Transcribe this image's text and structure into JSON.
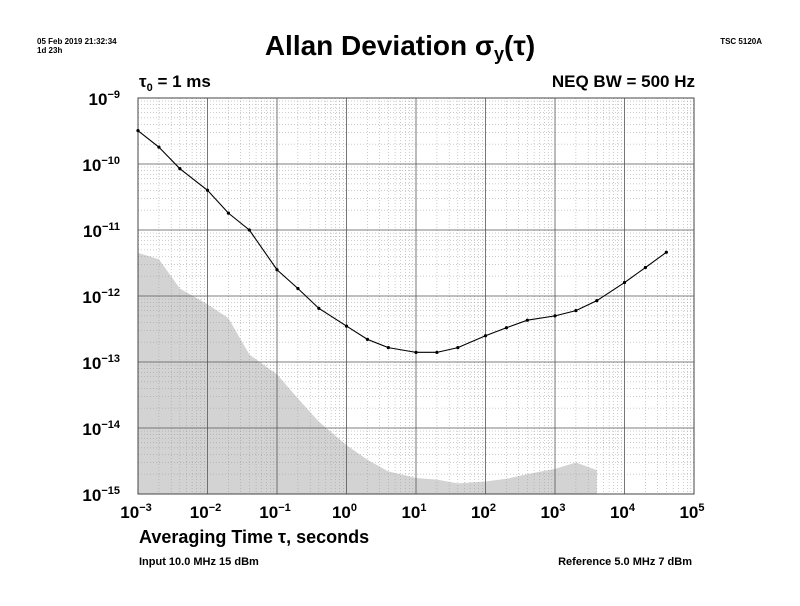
{
  "header": {
    "date": "05 Feb 2019 21:32:34",
    "elapsed": "1d 23h",
    "model": "TSC 5120A",
    "title_main": "Allan Deviation σ",
    "title_sub": "y",
    "title_tail": "(τ)",
    "tau0_prefix": "τ",
    "tau0_sub": "0",
    "tau0_value": " = 1 ms",
    "neq_bw": "NEQ BW = 500 Hz"
  },
  "footer": {
    "xlabel": "Averaging Time τ, seconds",
    "input": "Input 10.0 MHz 15 dBm",
    "reference": "Reference 5.0 MHz 7 dBm"
  },
  "colors": {
    "line": "#000000",
    "floor_fill": "#d3d3d3",
    "grid_major": "#555555",
    "grid_minor": "#9a9a9a"
  },
  "chart_data": {
    "type": "line",
    "x_scale": "log",
    "y_scale": "log",
    "xlim": [
      0.001,
      100000
    ],
    "ylim": [
      1e-15,
      1e-09
    ],
    "x_ticks": [
      "10^-3",
      "10^-2",
      "10^-1",
      "10^0",
      "10^1",
      "10^2",
      "10^3",
      "10^4",
      "10^5"
    ],
    "y_ticks": [
      "10^-9",
      "10^-10",
      "10^-11",
      "10^-12",
      "10^-13",
      "10^-14",
      "10^-15"
    ],
    "grid": true,
    "xlabel": "Averaging Time τ, seconds",
    "series": [
      {
        "x": [
          0.001,
          0.002,
          0.004,
          0.01,
          0.02,
          0.04,
          0.1,
          0.2,
          0.4,
          1,
          2,
          4,
          10,
          20,
          40,
          100,
          200,
          400,
          1000,
          2000,
          4000,
          10000,
          20000,
          40000
        ],
        "y": [
          3.2e-10,
          1.8e-10,
          8.5e-11,
          4e-11,
          1.8e-11,
          1e-11,
          2.5e-12,
          1.3e-12,
          6.5e-13,
          3.5e-13,
          2.2e-13,
          1.65e-13,
          1.4e-13,
          1.4e-13,
          1.65e-13,
          2.5e-13,
          3.3e-13,
          4.3e-13,
          5e-13,
          6e-13,
          8.5e-13,
          1.6e-12,
          2.7e-12,
          4.6e-12
        ]
      }
    ],
    "noise_floor": {
      "x": [
        0.001,
        0.002,
        0.004,
        0.01,
        0.02,
        0.04,
        0.1,
        0.2,
        0.4,
        1,
        2,
        4,
        10,
        20,
        40,
        100,
        200,
        400,
        1000,
        2000,
        4000
      ],
      "y": [
        4.5e-12,
        3.6e-12,
        1.3e-12,
        7.5e-13,
        4.6e-13,
        1.3e-13,
        6.5e-14,
        2.8e-14,
        1.25e-14,
        5.5e-15,
        3.3e-15,
        2.2e-15,
        1.75e-15,
        1.65e-15,
        1.45e-15,
        1.55e-15,
        1.7e-15,
        2e-15,
        2.4e-15,
        3e-15,
        2.3e-15
      ]
    }
  }
}
